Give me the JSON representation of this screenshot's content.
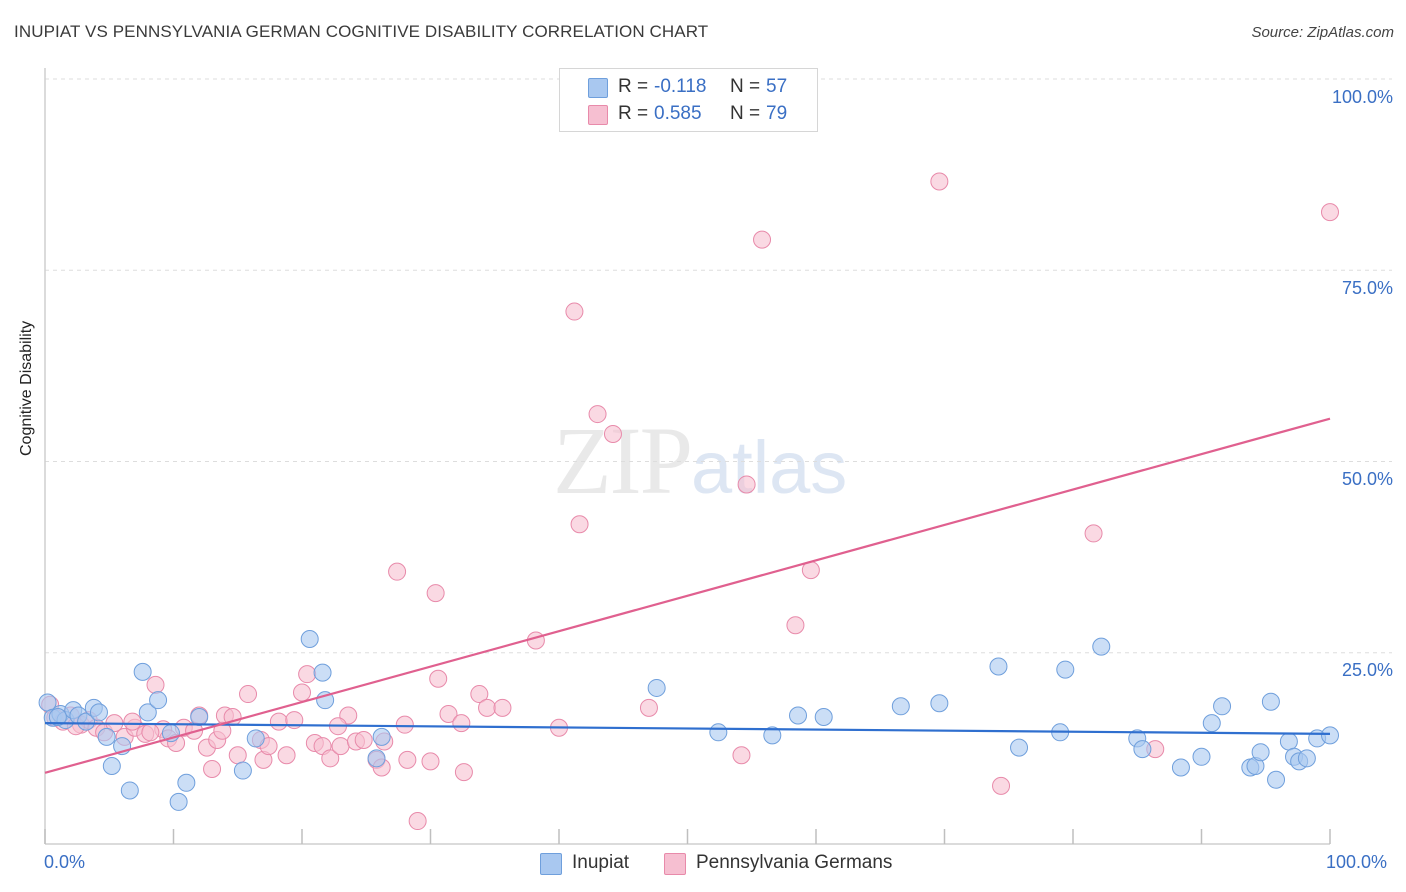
{
  "title": "INUPIAT VS PENNSYLVANIA GERMAN COGNITIVE DISABILITY CORRELATION CHART",
  "source": "Source: ZipAtlas.com",
  "watermark": {
    "zip": "ZIP",
    "atlas": "atlas"
  },
  "colors": {
    "inupiat_fill": "#a9c8f0",
    "inupiat_stroke": "#6f9fdc",
    "inupiat_line": "#2f6fcf",
    "penn_fill": "#f6bfd1",
    "penn_stroke": "#e88aaa",
    "penn_line": "#e0608f",
    "tick_text": "#3a6fc4",
    "grid": "#dddddd"
  },
  "legend": {
    "rows": [
      {
        "r_label": "R =",
        "r_value": "-0.118",
        "n_label": "N =",
        "n_value": "57"
      },
      {
        "r_label": "R =",
        "r_value": "0.585",
        "n_label": "N =",
        "n_value": "79"
      }
    ]
  },
  "chart_data": {
    "type": "scatter",
    "title": "INUPIAT VS PENNSYLVANIA GERMAN COGNITIVE DISABILITY CORRELATION CHART",
    "xlabel": "",
    "ylabel": "Cognitive Disability",
    "xlim": [
      0,
      100
    ],
    "ylim": [
      0,
      100
    ],
    "x_tick_labels": [
      "0.0%",
      "100.0%"
    ],
    "y_tick_labels": [
      "100.0%",
      "75.0%",
      "50.0%",
      "25.0%"
    ],
    "y_ticks": [
      100,
      75,
      50,
      25
    ],
    "grid": true,
    "legend_position": "top-center",
    "series": [
      {
        "name": "Inupiat",
        "trend": {
          "x": [
            0,
            100
          ],
          "y": [
            15.8,
            14.4
          ]
        },
        "points": [
          [
            0.2,
            18.5
          ],
          [
            0.6,
            16.5
          ],
          [
            1.2,
            17.0
          ],
          [
            1.6,
            16.2
          ],
          [
            2.2,
            17.5
          ],
          [
            2.6,
            16.8
          ],
          [
            3.2,
            16.0
          ],
          [
            3.8,
            17.8
          ],
          [
            4.2,
            17.2
          ],
          [
            4.8,
            14.0
          ],
          [
            5.2,
            10.2
          ],
          [
            6.0,
            12.8
          ],
          [
            6.6,
            7.0
          ],
          [
            7.6,
            22.5
          ],
          [
            8.0,
            17.2
          ],
          [
            8.8,
            18.8
          ],
          [
            9.8,
            14.5
          ],
          [
            10.4,
            5.5
          ],
          [
            11.0,
            8.0
          ],
          [
            15.4,
            9.6
          ],
          [
            16.4,
            13.8
          ],
          [
            20.6,
            26.8
          ],
          [
            21.6,
            22.4
          ],
          [
            21.8,
            18.8
          ],
          [
            25.8,
            11.2
          ],
          [
            26.2,
            14.0
          ],
          [
            47.6,
            20.4
          ],
          [
            52.4,
            14.6
          ],
          [
            56.6,
            14.2
          ],
          [
            58.6,
            16.8
          ],
          [
            60.6,
            16.6
          ],
          [
            66.6,
            18.0
          ],
          [
            69.6,
            18.4
          ],
          [
            74.2,
            23.2
          ],
          [
            75.8,
            12.6
          ],
          [
            79.0,
            14.6
          ],
          [
            79.4,
            22.8
          ],
          [
            82.2,
            25.8
          ],
          [
            85.0,
            13.8
          ],
          [
            85.4,
            12.4
          ],
          [
            88.4,
            10.0
          ],
          [
            90.0,
            11.4
          ],
          [
            90.8,
            15.8
          ],
          [
            91.6,
            18.0
          ],
          [
            93.8,
            10.0
          ],
          [
            94.2,
            10.2
          ],
          [
            94.6,
            12.0
          ],
          [
            95.4,
            18.6
          ],
          [
            95.8,
            8.4
          ],
          [
            96.8,
            13.4
          ],
          [
            97.2,
            11.4
          ],
          [
            97.6,
            10.8
          ],
          [
            98.2,
            11.2
          ],
          [
            99.0,
            13.8
          ],
          [
            100.0,
            14.2
          ],
          [
            1.0,
            16.6
          ],
          [
            12.0,
            16.6
          ]
        ]
      },
      {
        "name": "Pennsylvania Germans",
        "trend": {
          "x": [
            0,
            100
          ],
          "y": [
            9.3,
            55.6
          ]
        },
        "points": [
          [
            0.4,
            18.2
          ],
          [
            0.8,
            16.5
          ],
          [
            1.4,
            16.0
          ],
          [
            2.0,
            16.8
          ],
          [
            2.8,
            15.6
          ],
          [
            3.4,
            16.2
          ],
          [
            4.0,
            15.2
          ],
          [
            4.6,
            14.6
          ],
          [
            5.4,
            15.8
          ],
          [
            6.2,
            14.0
          ],
          [
            7.0,
            15.2
          ],
          [
            7.8,
            14.4
          ],
          [
            8.6,
            20.8
          ],
          [
            9.2,
            15.0
          ],
          [
            9.6,
            13.8
          ],
          [
            10.2,
            13.2
          ],
          [
            10.8,
            15.2
          ],
          [
            11.6,
            14.8
          ],
          [
            12.0,
            16.8
          ],
          [
            12.6,
            12.6
          ],
          [
            13.0,
            9.8
          ],
          [
            13.4,
            13.6
          ],
          [
            14.0,
            16.8
          ],
          [
            14.6,
            16.6
          ],
          [
            15.0,
            11.6
          ],
          [
            15.8,
            19.6
          ],
          [
            16.8,
            13.6
          ],
          [
            17.0,
            11.0
          ],
          [
            17.4,
            12.8
          ],
          [
            18.2,
            16.0
          ],
          [
            18.8,
            11.6
          ],
          [
            19.4,
            16.2
          ],
          [
            20.0,
            19.8
          ],
          [
            20.4,
            22.2
          ],
          [
            21.0,
            13.2
          ],
          [
            21.6,
            12.8
          ],
          [
            22.2,
            11.2
          ],
          [
            23.0,
            12.8
          ],
          [
            23.6,
            16.8
          ],
          [
            24.2,
            13.4
          ],
          [
            24.8,
            13.6
          ],
          [
            25.8,
            11.0
          ],
          [
            26.2,
            10.0
          ],
          [
            26.4,
            13.4
          ],
          [
            27.4,
            35.6
          ],
          [
            28.2,
            11.0
          ],
          [
            29.0,
            3.0
          ],
          [
            30.0,
            10.8
          ],
          [
            30.4,
            32.8
          ],
          [
            30.6,
            21.6
          ],
          [
            31.4,
            17.0
          ],
          [
            32.6,
            9.4
          ],
          [
            32.4,
            15.8
          ],
          [
            33.8,
            19.6
          ],
          [
            34.4,
            17.8
          ],
          [
            35.6,
            17.8
          ],
          [
            38.2,
            26.6
          ],
          [
            40.0,
            15.2
          ],
          [
            41.2,
            69.6
          ],
          [
            41.6,
            41.8
          ],
          [
            43.0,
            56.2
          ],
          [
            44.2,
            53.6
          ],
          [
            47.0,
            17.8
          ],
          [
            54.2,
            11.6
          ],
          [
            54.6,
            47.0
          ],
          [
            55.8,
            79.0
          ],
          [
            58.4,
            28.6
          ],
          [
            59.6,
            35.8
          ],
          [
            69.6,
            86.6
          ],
          [
            74.4,
            7.6
          ],
          [
            81.6,
            40.6
          ],
          [
            86.4,
            12.4
          ],
          [
            100.0,
            82.6
          ],
          [
            2.4,
            15.4
          ],
          [
            6.8,
            16.0
          ],
          [
            8.2,
            14.6
          ],
          [
            13.8,
            14.8
          ],
          [
            28.0,
            15.6
          ],
          [
            22.8,
            15.4
          ]
        ]
      }
    ]
  },
  "bottom_legend": [
    {
      "label": "Inupiat"
    },
    {
      "label": "Pennsylvania Germans"
    }
  ]
}
